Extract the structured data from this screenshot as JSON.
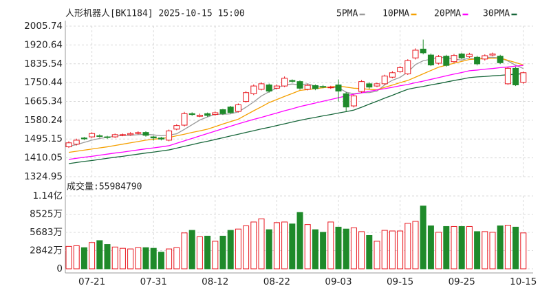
{
  "chart_data": [
    {
      "type": "candlestick",
      "title": "人形机器人[BK1184] 2025-10-15 15:00",
      "categories": [
        null,
        null,
        null,
        "07-21",
        null,
        null,
        null,
        null,
        null,
        null,
        null,
        "07-31",
        null,
        null,
        null,
        null,
        null,
        null,
        null,
        "08-12",
        null,
        null,
        null,
        null,
        null,
        null,
        null,
        "08-22",
        null,
        null,
        null,
        null,
        null,
        null,
        null,
        "09-03",
        null,
        null,
        null,
        null,
        null,
        null,
        null,
        "09-15",
        null,
        null,
        null,
        null,
        null,
        null,
        null,
        "09-25",
        null,
        null,
        null,
        null,
        null,
        null,
        null,
        "10-15"
      ],
      "open": [
        1460,
        1472,
        1500,
        1505,
        1510,
        1505,
        1505,
        1512,
        1515,
        1522,
        1525,
        1505,
        1500,
        1490,
        1540,
        1558,
        1610,
        1598,
        1610,
        1606,
        1628,
        1640,
        1620,
        1665,
        1700,
        1720,
        1740,
        1725,
        1735,
        1760,
        1755,
        1720,
        1737,
        1733,
        1728,
        1740,
        1700,
        1645,
        1710,
        1745,
        1735,
        1745,
        1775,
        1800,
        1790,
        1862,
        1902,
        1875,
        1838,
        1870,
        1845,
        1880,
        1868,
        1865,
        1857,
        1875,
        1870,
        1745,
        1815,
        1752
      ],
      "high": [
        1485,
        1497,
        1505,
        1526,
        1516,
        1510,
        1520,
        1520,
        1526,
        1530,
        1530,
        1510,
        1505,
        1538,
        1562,
        1618,
        1616,
        1610,
        1615,
        1620,
        1632,
        1645,
        1656,
        1712,
        1742,
        1752,
        1746,
        1742,
        1778,
        1765,
        1760,
        1745,
        1742,
        1740,
        1736,
        1765,
        1708,
        1696,
        1762,
        1752,
        1750,
        1786,
        1802,
        1825,
        1856,
        1905,
        1945,
        1882,
        1875,
        1876,
        1880,
        1885,
        1885,
        1872,
        1878,
        1886,
        1876,
        1822,
        1822,
        1800
      ],
      "low": [
        1455,
        1466,
        1490,
        1500,
        1502,
        1496,
        1500,
        1508,
        1510,
        1516,
        1506,
        1488,
        1489,
        1485,
        1535,
        1552,
        1600,
        1594,
        1596,
        1600,
        1604,
        1610,
        1615,
        1660,
        1694,
        1715,
        1705,
        1720,
        1730,
        1750,
        1718,
        1715,
        1716,
        1725,
        1722,
        1665,
        1620,
        1638,
        1704,
        1722,
        1730,
        1740,
        1770,
        1795,
        1785,
        1855,
        1878,
        1825,
        1832,
        1822,
        1840,
        1856,
        1862,
        1828,
        1850,
        1870,
        1834,
        1740,
        1735,
        1745
      ],
      "close": [
        1478,
        1490,
        1496,
        1520,
        1508,
        1502,
        1515,
        1515,
        1520,
        1524,
        1512,
        1500,
        1495,
        1532,
        1556,
        1610,
        1606,
        1603,
        1602,
        1614,
        1610,
        1615,
        1650,
        1705,
        1735,
        1745,
        1712,
        1735,
        1770,
        1756,
        1725,
        1738,
        1723,
        1730,
        1730,
        1712,
        1640,
        1690,
        1755,
        1730,
        1745,
        1780,
        1795,
        1818,
        1850,
        1897,
        1885,
        1830,
        1868,
        1828,
        1873,
        1862,
        1878,
        1835,
        1872,
        1880,
        1840,
        1815,
        1740,
        1795
      ],
      "up_color": "#e8141c",
      "down_color": "#1f8a2a",
      "series": [
        {
          "name": "5PMA",
          "color": "#9a9a9a",
          "values": [
            1462,
            1470,
            1480,
            1490,
            1498,
            1503,
            1508,
            1512,
            1512,
            1515,
            1517,
            1514,
            1510,
            1513,
            1519,
            1539,
            1560,
            1581,
            1595,
            1607,
            1607,
            1609,
            1618,
            1639,
            1663,
            1690,
            1709,
            1726,
            1739,
            1744,
            1740,
            1745,
            1734,
            1730,
            1729,
            1727,
            1707,
            1700,
            1705,
            1705,
            1712,
            1740,
            1761,
            1774,
            1798,
            1832,
            1849,
            1856,
            1866,
            1862,
            1857,
            1852,
            1862,
            1855,
            1864,
            1865,
            1861,
            1848,
            1829,
            1814
          ]
        },
        {
          "name": "10PMA",
          "color": "#f5a000",
          "values": [
            1435,
            1440,
            1445,
            1450,
            1455,
            1460,
            1466,
            1472,
            1478,
            1484,
            1490,
            1494,
            1498,
            1502,
            1510,
            1517,
            1525,
            1532,
            1540,
            1551,
            1563,
            1574,
            1585,
            1604,
            1623,
            1641,
            1660,
            1674,
            1688,
            1701,
            1715,
            1719,
            1723,
            1727,
            1731,
            1735,
            1730,
            1725,
            1723,
            1720,
            1718,
            1729,
            1739,
            1750,
            1760,
            1775,
            1790,
            1805,
            1820,
            1829,
            1838,
            1846,
            1855,
            1857,
            1859,
            1860,
            1862,
            1851,
            1841,
            1830
          ]
        },
        {
          "name": "20PMA",
          "color": "#ff00ff",
          "values": [
            1403,
            1408,
            1413,
            1417,
            1422,
            1427,
            1432,
            1436,
            1441,
            1446,
            1451,
            1455,
            1460,
            1465,
            1476,
            1487,
            1498,
            1509,
            1520,
            1531,
            1542,
            1553,
            1564,
            1574,
            1584,
            1593,
            1603,
            1613,
            1623,
            1632,
            1642,
            1650,
            1658,
            1666,
            1674,
            1682,
            1690,
            1698,
            1704,
            1711,
            1717,
            1723,
            1729,
            1736,
            1742,
            1750,
            1757,
            1765,
            1773,
            1781,
            1789,
            1796,
            1804,
            1807,
            1811,
            1814,
            1818,
            1821,
            1825,
            1828
          ]
        },
        {
          "name": "30PMA",
          "color": "#17663a",
          "values": [
            1384,
            1389,
            1394,
            1398,
            1403,
            1408,
            1413,
            1417,
            1422,
            1427,
            1432,
            1436,
            1441,
            1446,
            1454,
            1462,
            1470,
            1478,
            1485,
            1493,
            1501,
            1509,
            1517,
            1525,
            1533,
            1541,
            1548,
            1556,
            1564,
            1572,
            1580,
            1587,
            1593,
            1600,
            1606,
            1613,
            1619,
            1626,
            1639,
            1653,
            1666,
            1680,
            1693,
            1707,
            1720,
            1727,
            1733,
            1740,
            1746,
            1753,
            1760,
            1766,
            1773,
            1776,
            1778,
            1781,
            1783,
            1786,
            1788,
            1791
          ]
        }
      ],
      "ylim": [
        1324.95,
        2005.74
      ],
      "yticks": [
        2005.74,
        1920.64,
        1835.54,
        1750.44,
        1665.34,
        1580.24,
        1495.15,
        1410.05,
        1324.95
      ],
      "grid": true
    },
    {
      "type": "bar",
      "title": "成交量:55984790",
      "values": [
        35000000,
        36000000,
        33000000,
        41000000,
        44000000,
        38000000,
        34000000,
        32000000,
        31000000,
        33000000,
        33000000,
        32000000,
        26000000,
        31000000,
        33000000,
        56000000,
        60000000,
        50000000,
        51000000,
        43000000,
        51000000,
        60000000,
        62000000,
        67000000,
        73000000,
        78000000,
        61000000,
        72000000,
        73000000,
        70000000,
        88000000,
        69000000,
        61000000,
        57000000,
        73000000,
        65000000,
        62000000,
        64000000,
        58000000,
        52000000,
        43000000,
        60000000,
        59000000,
        59000000,
        71000000,
        74000000,
        98000000,
        67000000,
        57000000,
        66000000,
        66000000,
        66000000,
        66000000,
        58000000,
        58000000,
        57000000,
        67000000,
        68000000,
        65000000,
        55984790
      ],
      "ylim": [
        0,
        113660000
      ],
      "yticks": [
        {
          "value": 113660000,
          "label": "1.14亿"
        },
        {
          "value": 85250000,
          "label": "8525万"
        },
        {
          "value": 56830000,
          "label": "5683万"
        },
        {
          "value": 28420000,
          "label": "2842万"
        },
        0
      ],
      "grid": true
    }
  ]
}
